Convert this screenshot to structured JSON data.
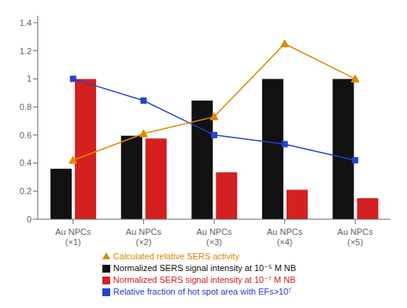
{
  "chart_data": {
    "type": "bar",
    "categories": [
      "Au NPCs\n(×1)",
      "Au NPCs\n(×2)",
      "Au NPCs\n(×3)",
      "Au NPCs\n(×4)",
      "Au NPCs\n(×5)"
    ],
    "series": [
      {
        "name": "Normalized SERS signal intensity at 10⁻⁵ M NB",
        "type": "bar",
        "color": "#111111",
        "values": [
          0.36,
          0.595,
          0.845,
          1.0,
          1.0
        ]
      },
      {
        "name": "Normalized SERS signal intensity at 10⁻⁷ M NB",
        "type": "bar",
        "color": "#d42020",
        "values": [
          1.0,
          0.575,
          0.335,
          0.21,
          0.15
        ]
      },
      {
        "name": "Relative fraction of hot spot area with EFs>10⁷",
        "type": "line",
        "color": "#2244cc",
        "marker": "square",
        "values": [
          1.0,
          0.845,
          0.6,
          0.535,
          0.42
        ]
      },
      {
        "name": "Calculated relative SERS activity",
        "type": "line",
        "color": "#e08800",
        "marker": "triangle",
        "values": [
          0.42,
          0.61,
          0.73,
          1.25,
          1.0
        ]
      }
    ],
    "ylim": [
      0.0,
      1.45
    ],
    "yticks": [
      0.0,
      0.2,
      0.4,
      0.6,
      0.8,
      1.0,
      1.2,
      1.4
    ],
    "grid": false
  }
}
